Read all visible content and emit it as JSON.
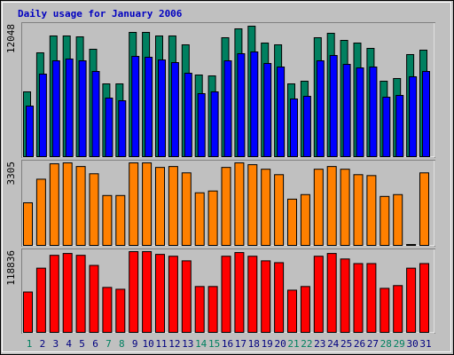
{
  "chart_data": [
    {
      "type": "bar",
      "title": "Daily usage for January 2006",
      "ylim": [
        0,
        12048
      ],
      "yticks": [
        12048
      ],
      "series": [
        {
          "color": "#008060",
          "values": [
            5903,
            9460,
            10997,
            10997,
            10916,
            9784,
            6630,
            6630,
            11320,
            11320,
            10997,
            10997,
            10188,
            7439,
            7358,
            10835,
            11644,
            11886,
            10350,
            10188,
            6630,
            6873,
            10835,
            11239,
            10593,
            10350,
            9865,
            6873,
            7116,
            9299,
            9703
          ]
        },
        {
          "color": "#0000ff",
          "values": [
            4609,
            7520,
            8733,
            8894,
            8733,
            7762,
            5337,
            5094,
            9137,
            9056,
            8813,
            8571,
            7601,
            5741,
            5903,
            8733,
            9380,
            9541,
            8490,
            8167,
            5256,
            5498,
            8733,
            9218,
            8409,
            8086,
            8167,
            5418,
            5579,
            7277,
            7762
          ]
        }
      ]
    },
    {
      "type": "bar",
      "ylim": [
        0,
        3305
      ],
      "yticks": [
        3305
      ],
      "series": [
        {
          "color": "#ff8000",
          "values": [
            1688,
            2622,
            3233,
            3269,
            3125,
            2838,
            1976,
            1976,
            3269,
            3269,
            3089,
            3125,
            2874,
            2084,
            2155,
            3089,
            3269,
            3197,
            3018,
            2802,
            1832,
            2012,
            3018,
            3125,
            3018,
            2802,
            2766,
            1940,
            2012,
            36,
            2874
          ]
        }
      ]
    },
    {
      "type": "bar",
      "ylim": [
        0,
        118836
      ],
      "yticks": [
        118836
      ],
      "categories": [
        "1",
        "2",
        "3",
        "4",
        "5",
        "6",
        "7",
        "8",
        "9",
        "10",
        "11",
        "12",
        "13",
        "14",
        "15",
        "16",
        "17",
        "18",
        "19",
        "20",
        "21",
        "22",
        "23",
        "24",
        "25",
        "26",
        "27",
        "28",
        "29",
        "30",
        "31"
      ],
      "label_colors": [
        "#008060",
        "#000080",
        "#000080",
        "#000080",
        "#000080",
        "#000080",
        "#008060",
        "#008060",
        "#000080",
        "#000080",
        "#000080",
        "#000080",
        "#000080",
        "#008060",
        "#008060",
        "#000080",
        "#000080",
        "#000080",
        "#000080",
        "#000080",
        "#008060",
        "#008060",
        "#000080",
        "#000080",
        "#000080",
        "#000080",
        "#000080",
        "#008060",
        "#008060",
        "#000080",
        "#000080"
      ],
      "series": [
        {
          "color": "#ff0000",
          "values": [
            58750,
            93466,
            112159,
            114830,
            112159,
            97472,
            65426,
            62756,
            117500,
            117500,
            113494,
            110824,
            104148,
            66761,
            66761,
            110824,
            116164,
            110824,
            104148,
            101478,
            61420,
            66761,
            110824,
            114830,
            106818,
            100142,
            100142,
            64090,
            68097,
            93466,
            100142
          ]
        }
      ]
    }
  ]
}
